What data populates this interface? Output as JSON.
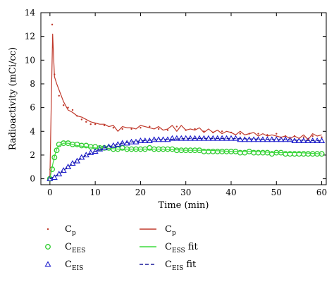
{
  "chart_data": {
    "type": "line",
    "xlabel": "Time (min)",
    "ylabel": "Radioactivity (mCi/cc)",
    "xlim": [
      -2,
      61
    ],
    "ylim": [
      -0.5,
      14
    ],
    "xticks": [
      0,
      10,
      20,
      30,
      40,
      50,
      60
    ],
    "yticks": [
      0,
      2,
      4,
      6,
      8,
      10,
      12,
      14
    ],
    "grid": false,
    "legend_position": "bottom",
    "series": [
      {
        "name": "Cp",
        "name_main": "C",
        "name_sub": "p",
        "style": "dots",
        "color": "#c0392b",
        "x": [
          0,
          0.5,
          1,
          2,
          3,
          4,
          5,
          6,
          7,
          8,
          9,
          10,
          12,
          14,
          16,
          18,
          20,
          22,
          24,
          26,
          28,
          30,
          32,
          34,
          36,
          38,
          40,
          42,
          44,
          46,
          48,
          50,
          52,
          54,
          56,
          58,
          60
        ],
        "y": [
          0.2,
          13.0,
          8.8,
          7.0,
          6.2,
          6.0,
          5.8,
          5.3,
          5.0,
          4.8,
          4.6,
          4.6,
          4.5,
          4.3,
          4.2,
          4.2,
          4.3,
          4.4,
          4.2,
          4.1,
          4.4,
          4.1,
          4.2,
          4.0,
          3.9,
          4.0,
          3.9,
          3.8,
          3.8,
          3.8,
          3.7,
          3.8,
          3.6,
          3.6,
          3.5,
          3.6,
          3.5
        ]
      },
      {
        "name": "CEES",
        "name_main": "C",
        "name_sub": "EES",
        "style": "circles",
        "color": "#2ecc2e",
        "x": [
          0,
          0.5,
          1,
          1.5,
          2,
          3,
          4,
          5,
          6,
          7,
          8,
          9,
          10,
          11,
          12,
          13,
          14,
          15,
          16,
          17,
          18,
          19,
          20,
          21,
          22,
          23,
          24,
          25,
          26,
          27,
          28,
          29,
          30,
          31,
          32,
          33,
          34,
          35,
          36,
          37,
          38,
          39,
          40,
          41,
          42,
          43,
          44,
          45,
          46,
          47,
          48,
          49,
          50,
          51,
          52,
          53,
          54,
          55,
          56,
          57,
          58,
          59,
          60
        ],
        "y": [
          0,
          0.8,
          1.8,
          2.4,
          2.9,
          3.0,
          3.0,
          2.9,
          2.9,
          2.8,
          2.8,
          2.7,
          2.7,
          2.6,
          2.6,
          2.6,
          2.5,
          2.5,
          2.6,
          2.5,
          2.5,
          2.5,
          2.5,
          2.5,
          2.6,
          2.5,
          2.5,
          2.5,
          2.5,
          2.5,
          2.4,
          2.4,
          2.4,
          2.4,
          2.4,
          2.4,
          2.3,
          2.3,
          2.3,
          2.3,
          2.3,
          2.3,
          2.3,
          2.3,
          2.2,
          2.2,
          2.3,
          2.2,
          2.2,
          2.2,
          2.2,
          2.1,
          2.2,
          2.2,
          2.1,
          2.1,
          2.1,
          2.1,
          2.1,
          2.1,
          2.1,
          2.1,
          2.1
        ]
      },
      {
        "name": "CEIS",
        "name_main": "C",
        "name_sub": "EIS",
        "style": "triangles",
        "color": "#1a1acc",
        "x": [
          0,
          1,
          2,
          3,
          4,
          5,
          6,
          7,
          8,
          9,
          10,
          11,
          12,
          13,
          14,
          15,
          16,
          17,
          18,
          19,
          20,
          21,
          22,
          23,
          24,
          25,
          26,
          27,
          28,
          29,
          30,
          31,
          32,
          33,
          34,
          35,
          36,
          37,
          38,
          39,
          40,
          41,
          42,
          43,
          44,
          45,
          46,
          47,
          48,
          49,
          50,
          51,
          52,
          53,
          54,
          55,
          56,
          57,
          58,
          59,
          60
        ],
        "y": [
          0,
          0.1,
          0.4,
          0.7,
          1.0,
          1.3,
          1.5,
          1.8,
          2.0,
          2.2,
          2.3,
          2.5,
          2.6,
          2.7,
          2.8,
          2.9,
          3.0,
          3.0,
          3.1,
          3.1,
          3.2,
          3.2,
          3.2,
          3.3,
          3.3,
          3.3,
          3.3,
          3.4,
          3.4,
          3.4,
          3.4,
          3.4,
          3.4,
          3.4,
          3.4,
          3.4,
          3.4,
          3.4,
          3.4,
          3.4,
          3.4,
          3.4,
          3.3,
          3.3,
          3.3,
          3.3,
          3.3,
          3.3,
          3.3,
          3.3,
          3.3,
          3.3,
          3.3,
          3.3,
          3.2,
          3.2,
          3.2,
          3.2,
          3.2,
          3.2,
          3.2
        ]
      },
      {
        "name": "Cp",
        "name_main": "C",
        "name_sub": "p",
        "style": "solid",
        "color": "#c0392b",
        "x": [
          0,
          0.3,
          0.6,
          1,
          1.5,
          2,
          3,
          4,
          5,
          6,
          7,
          8,
          9,
          10,
          11,
          12,
          13,
          14,
          15,
          16,
          17,
          18,
          19,
          20,
          21,
          22,
          23,
          24,
          25,
          26,
          27,
          28,
          29,
          30,
          31,
          32,
          33,
          34,
          35,
          36,
          37,
          38,
          39,
          40,
          41,
          42,
          43,
          44,
          45,
          46,
          47,
          48,
          49,
          50,
          51,
          52,
          53,
          54,
          55,
          56,
          57,
          58,
          59,
          60
        ],
        "y": [
          0.2,
          6.5,
          12.2,
          8.6,
          8.0,
          7.5,
          6.5,
          5.8,
          5.6,
          5.3,
          5.2,
          5.0,
          4.8,
          4.7,
          4.6,
          4.6,
          4.4,
          4.5,
          4.0,
          4.4,
          4.3,
          4.3,
          4.2,
          4.5,
          4.4,
          4.3,
          4.2,
          4.4,
          4.1,
          4.2,
          4.5,
          4.0,
          4.5,
          4.1,
          4.2,
          4.1,
          4.3,
          3.9,
          4.2,
          3.9,
          4.1,
          3.8,
          4.0,
          3.9,
          3.7,
          4.0,
          3.7,
          3.8,
          3.9,
          3.6,
          3.8,
          3.6,
          3.7,
          3.6,
          3.5,
          3.6,
          3.4,
          3.6,
          3.4,
          3.7,
          3.3,
          3.8,
          3.6,
          3.7
        ]
      },
      {
        "name": "CESS fit",
        "name_main": "C",
        "name_sub": "ESS",
        "name_suffix": " fit",
        "style": "solid",
        "color": "#3ddc3d",
        "x": [
          0,
          0.5,
          1,
          1.5,
          2,
          3,
          4,
          5,
          6,
          8,
          10,
          12,
          15,
          20,
          25,
          30,
          35,
          40,
          45,
          50,
          55,
          60
        ],
        "y": [
          0,
          1.0,
          1.9,
          2.5,
          2.8,
          3.0,
          3.0,
          2.9,
          2.8,
          2.7,
          2.6,
          2.6,
          2.5,
          2.5,
          2.5,
          2.4,
          2.4,
          2.3,
          2.3,
          2.2,
          2.2,
          2.1
        ]
      },
      {
        "name": "CEIS fit",
        "name_main": "C",
        "name_sub": "EIS",
        "name_suffix": " fit",
        "style": "dashed",
        "color": "#1a1a99",
        "x": [
          0,
          2,
          4,
          6,
          8,
          10,
          12,
          14,
          16,
          18,
          20,
          22,
          25,
          28,
          30,
          35,
          40,
          45,
          50,
          55,
          60
        ],
        "y": [
          0,
          0.4,
          1.0,
          1.5,
          2.0,
          2.3,
          2.6,
          2.8,
          3.0,
          3.1,
          3.2,
          3.25,
          3.3,
          3.35,
          3.4,
          3.4,
          3.4,
          3.35,
          3.3,
          3.25,
          3.2
        ]
      }
    ]
  }
}
